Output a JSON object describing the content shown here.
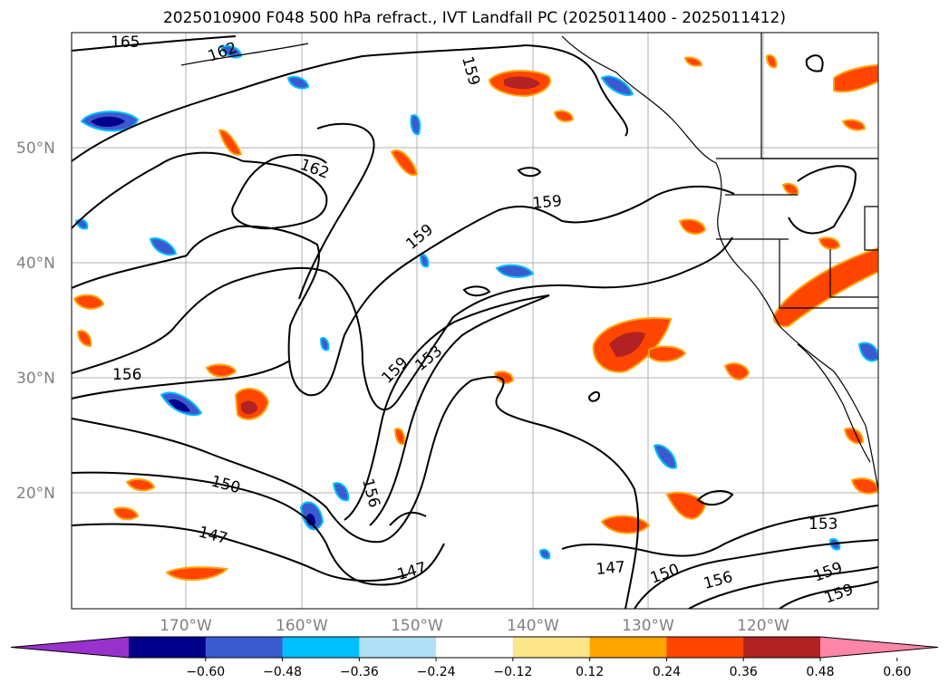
{
  "title": "2025010900 F048 500 hPa refract., IVT Landfall PC (2025011400 - 2025011412)",
  "map": {
    "lat_labels": [
      "50°N",
      "40°N",
      "30°N",
      "20°N"
    ],
    "lon_labels": [
      "170°W",
      "160°W",
      "150°W",
      "140°W",
      "130°W",
      "120°W"
    ],
    "gridlines": true,
    "coastline_color": "#000000"
  },
  "contour_labels": [
    "165",
    "162",
    "162",
    "159",
    "159",
    "159",
    "159",
    "156",
    "159",
    "153",
    "156",
    "150",
    "147",
    "147",
    "147",
    "150",
    "156",
    "153",
    "159",
    "159"
  ],
  "colorbar": {
    "ticks": [
      "−0.60",
      "−0.48",
      "−0.36",
      "−0.24",
      "−0.12",
      "0.12",
      "0.24",
      "0.36",
      "0.48",
      "0.60"
    ],
    "colors": [
      "#9932cc",
      "#00008b",
      "#3a5bd0",
      "#00bfff",
      "#b0e0f5",
      "#ffffff",
      "#fde68a",
      "#ffa500",
      "#ff4500",
      "#b22222",
      "#ff86a8"
    ]
  }
}
